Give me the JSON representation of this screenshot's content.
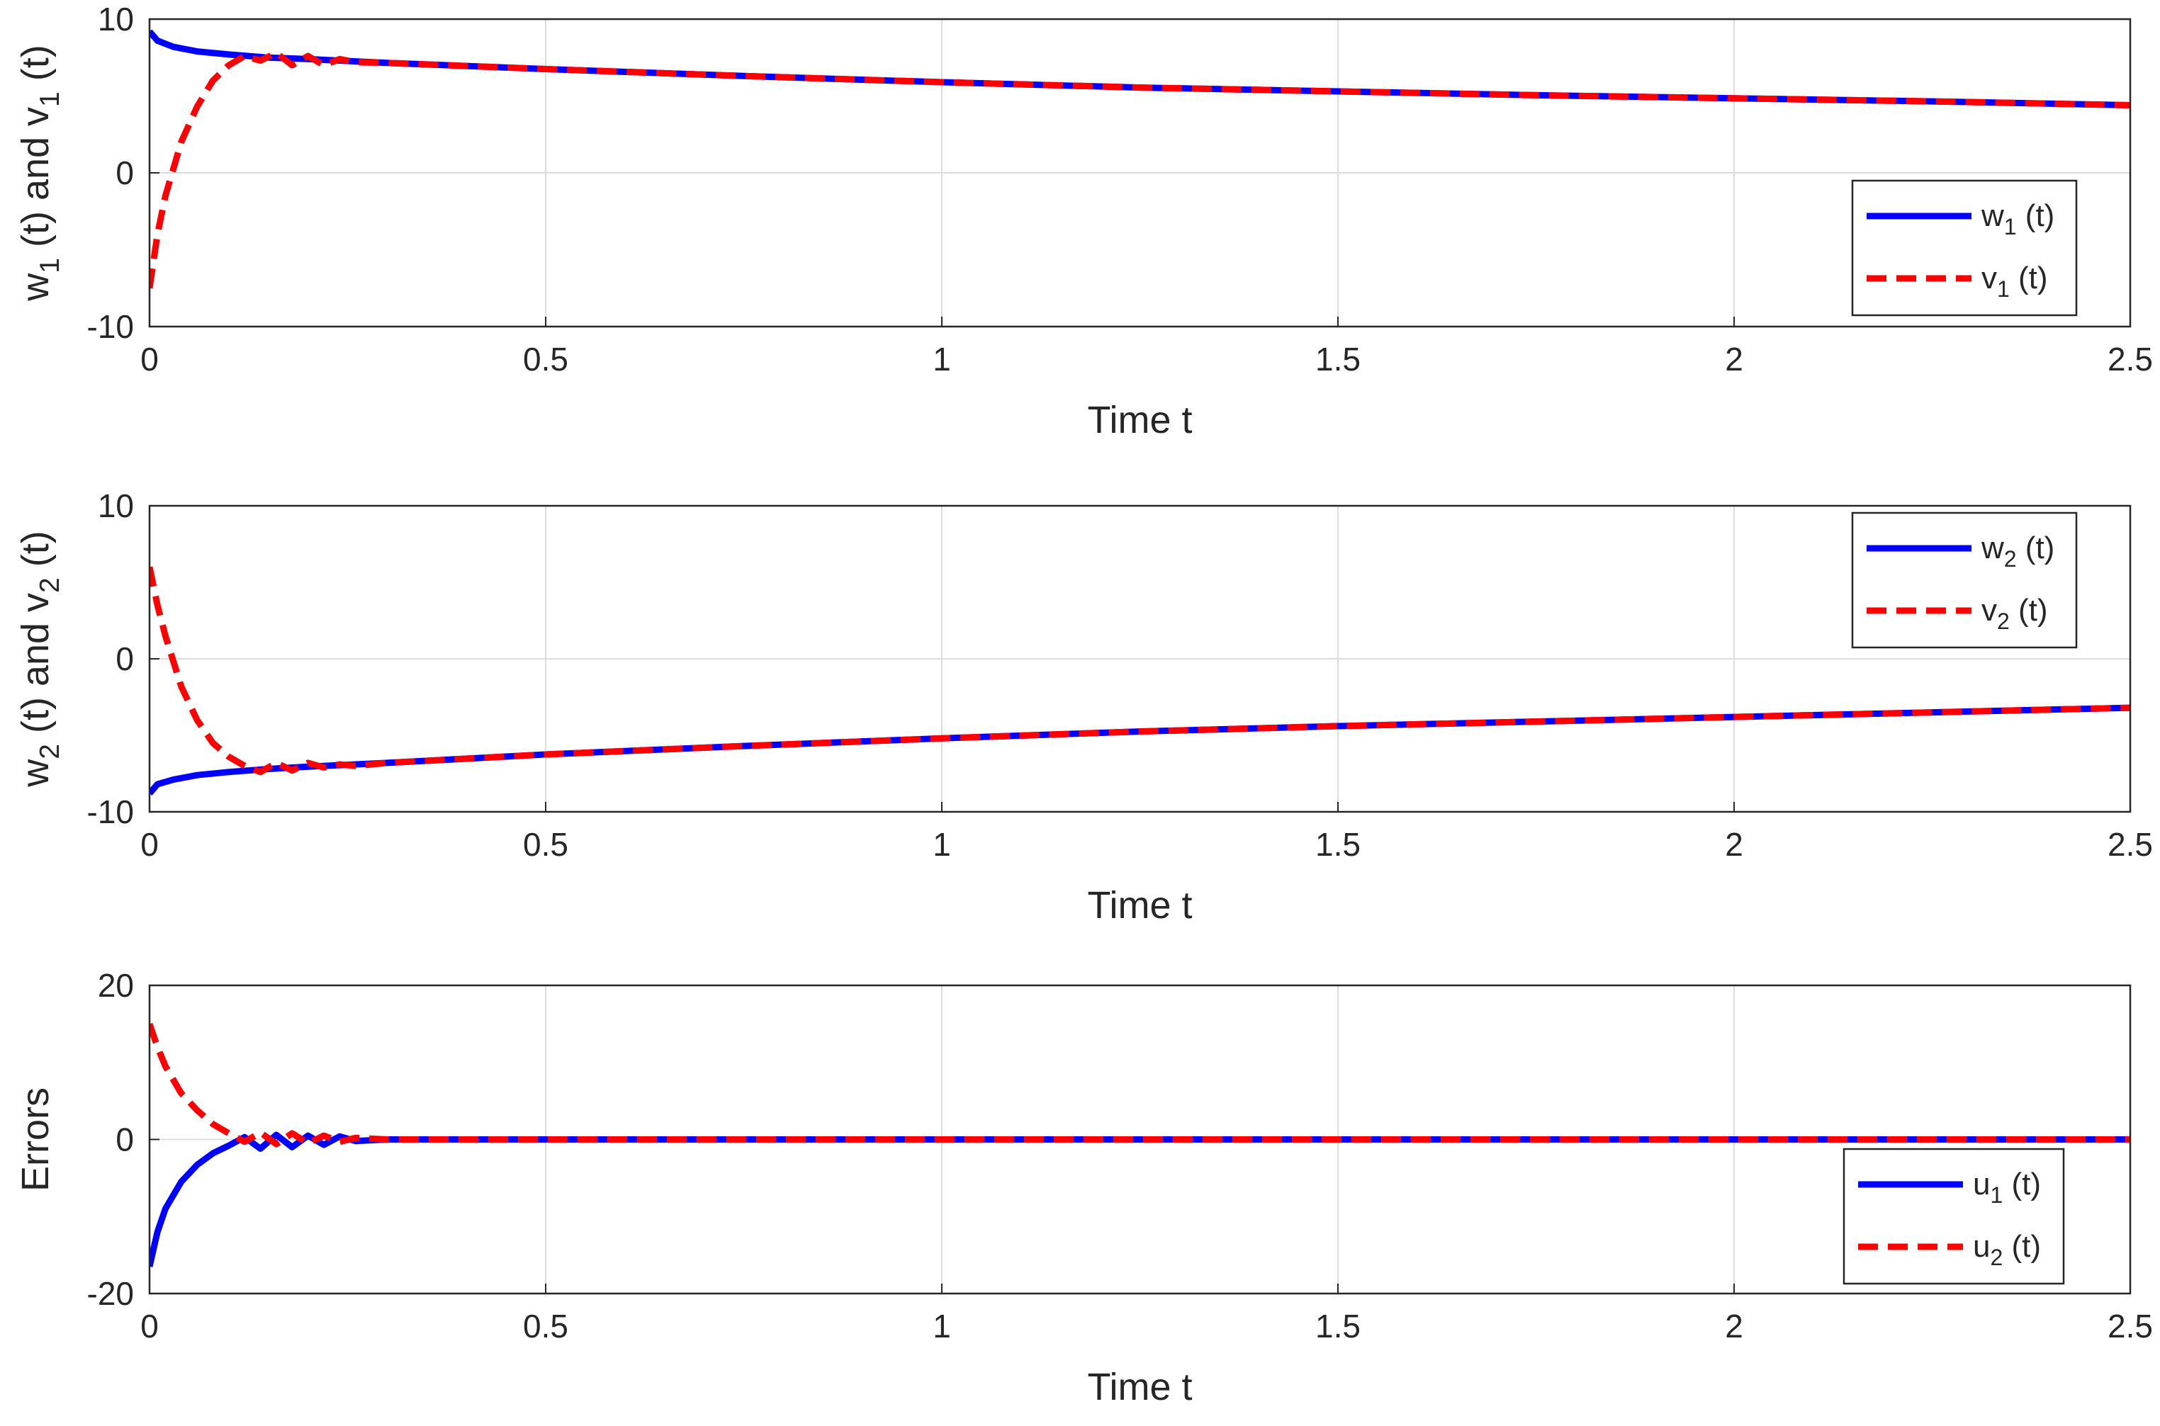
{
  "chart_data": [
    {
      "type": "line",
      "title": "",
      "xlabel": "Time t",
      "ylabel": "w_1 (t) and v_1 (t)",
      "xlim": [
        0,
        2.5
      ],
      "ylim": [
        -10,
        10
      ],
      "xticks": [
        "0",
        "0.5",
        "1",
        "1.5",
        "2",
        "2.5"
      ],
      "yticks": [
        "-10",
        "0",
        "10"
      ],
      "grid": true,
      "legend_position": "bottom-right",
      "series": [
        {
          "name": "w_1 (t)",
          "color": "#0000ff",
          "style": "solid",
          "x": [
            0,
            0.01,
            0.03,
            0.06,
            0.1,
            0.15,
            0.2,
            0.3,
            0.5,
            0.75,
            1.0,
            1.25,
            1.5,
            1.75,
            2.0,
            2.25,
            2.5
          ],
          "y": [
            9.2,
            8.6,
            8.2,
            7.9,
            7.7,
            7.5,
            7.4,
            7.15,
            6.75,
            6.3,
            5.9,
            5.55,
            5.3,
            5.05,
            4.85,
            4.65,
            4.4
          ]
        },
        {
          "name": "v_1 (t)",
          "color": "#ff0000",
          "style": "dashed",
          "x": [
            0,
            0.01,
            0.02,
            0.04,
            0.06,
            0.08,
            0.1,
            0.12,
            0.14,
            0.16,
            0.18,
            0.2,
            0.22,
            0.24,
            0.26,
            0.3,
            0.5,
            0.75,
            1.0,
            1.25,
            1.5,
            1.75,
            2.0,
            2.25,
            2.5
          ],
          "y": [
            -7.5,
            -4.0,
            -1.5,
            2.0,
            4.3,
            6.0,
            7.0,
            7.6,
            7.3,
            7.8,
            7.0,
            7.6,
            7.0,
            7.4,
            7.2,
            7.15,
            6.75,
            6.3,
            5.9,
            5.55,
            5.3,
            5.05,
            4.85,
            4.65,
            4.4
          ]
        }
      ]
    },
    {
      "type": "line",
      "title": "",
      "xlabel": "Time t",
      "ylabel": "w_2 (t) and v_2 (t)",
      "xlim": [
        0,
        2.5
      ],
      "ylim": [
        -10,
        10
      ],
      "xticks": [
        "0",
        "0.5",
        "1",
        "1.5",
        "2",
        "2.5"
      ],
      "yticks": [
        "-10",
        "0",
        "10"
      ],
      "grid": true,
      "legend_position": "top-right",
      "series": [
        {
          "name": "w_2 (t)",
          "color": "#0000ff",
          "style": "solid",
          "x": [
            0,
            0.01,
            0.03,
            0.06,
            0.1,
            0.15,
            0.2,
            0.3,
            0.5,
            0.75,
            1.0,
            1.25,
            1.5,
            1.75,
            2.0,
            2.25,
            2.5
          ],
          "y": [
            -8.8,
            -8.2,
            -7.9,
            -7.6,
            -7.4,
            -7.2,
            -7.05,
            -6.8,
            -6.25,
            -5.7,
            -5.2,
            -4.75,
            -4.4,
            -4.1,
            -3.8,
            -3.5,
            -3.2
          ]
        },
        {
          "name": "v_2 (t)",
          "color": "#ff0000",
          "style": "dashed",
          "x": [
            0,
            0.01,
            0.02,
            0.04,
            0.06,
            0.08,
            0.1,
            0.12,
            0.14,
            0.16,
            0.18,
            0.2,
            0.22,
            0.24,
            0.26,
            0.3,
            0.5,
            0.75,
            1.0,
            1.25,
            1.5,
            1.75,
            2.0,
            2.25,
            2.5
          ],
          "y": [
            6.0,
            3.5,
            1.5,
            -1.8,
            -4.0,
            -5.5,
            -6.4,
            -7.0,
            -7.4,
            -6.8,
            -7.3,
            -6.8,
            -7.1,
            -6.9,
            -7.0,
            -6.8,
            -6.25,
            -5.7,
            -5.2,
            -4.75,
            -4.4,
            -4.1,
            -3.8,
            -3.5,
            -3.2
          ]
        }
      ]
    },
    {
      "type": "line",
      "title": "",
      "xlabel": "Time t",
      "ylabel": "Errors",
      "xlim": [
        0,
        2.5
      ],
      "ylim": [
        -20,
        20
      ],
      "xticks": [
        "0",
        "0.5",
        "1",
        "1.5",
        "2",
        "2.5"
      ],
      "yticks": [
        "-20",
        "0",
        "20"
      ],
      "grid": true,
      "legend_position": "bottom-right",
      "series": [
        {
          "name": "u_1 (t)",
          "color": "#0000ff",
          "style": "solid",
          "x": [
            0,
            0.01,
            0.02,
            0.04,
            0.06,
            0.08,
            0.1,
            0.12,
            0.14,
            0.16,
            0.18,
            0.2,
            0.22,
            0.24,
            0.26,
            0.3,
            2.5
          ],
          "y": [
            -16.5,
            -12.0,
            -9.0,
            -5.5,
            -3.3,
            -1.8,
            -0.8,
            0.3,
            -1.2,
            0.6,
            -1.0,
            0.5,
            -0.7,
            0.4,
            -0.2,
            0,
            0
          ]
        },
        {
          "name": "u_2 (t)",
          "color": "#ff0000",
          "style": "dashed",
          "x": [
            0,
            0.01,
            0.02,
            0.04,
            0.06,
            0.08,
            0.1,
            0.12,
            0.14,
            0.16,
            0.18,
            0.2,
            0.22,
            0.24,
            0.26,
            0.3,
            2.5
          ],
          "y": [
            15.0,
            12.0,
            9.5,
            6.0,
            3.8,
            2.0,
            0.8,
            -0.3,
            0.9,
            -0.6,
            0.8,
            -0.5,
            0.5,
            -0.3,
            0.2,
            0,
            0
          ]
        }
      ]
    }
  ]
}
